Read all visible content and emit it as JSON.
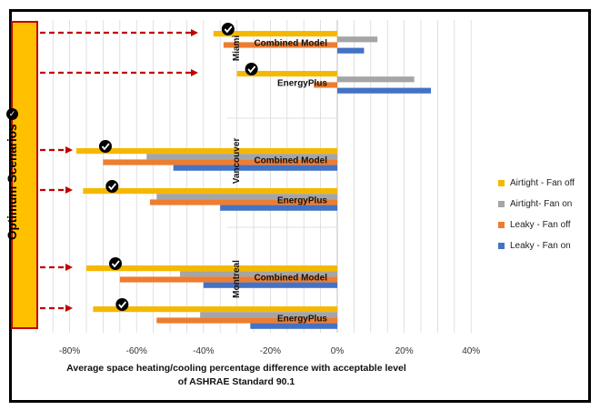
{
  "chart_data": {
    "type": "bar",
    "orientation": "horizontal",
    "xlabel": "Average space heating/cooling percentage difference with acceptable level of ASHRAE Standard 90.1",
    "xlim": [
      -90,
      40
    ],
    "xticks": [
      "-80%",
      "-60%",
      "-40%",
      "-20%",
      "0%",
      "20%",
      "40%"
    ],
    "xtick_values": [
      -80,
      -60,
      -40,
      -20,
      0,
      20,
      40
    ],
    "grid": true,
    "legend_position": "right",
    "series": [
      {
        "name": "Airtight - Fan off",
        "color": "#f5b800"
      },
      {
        "name": "Airtight- Fan on",
        "color": "#a5a5a5"
      },
      {
        "name": "Leaky - Fan off",
        "color": "#ed7d31"
      },
      {
        "name": "Leaky - Fan on",
        "color": "#4472c4"
      }
    ],
    "groups": [
      {
        "city": "Miami",
        "model": "Combined Model",
        "values": [
          -37,
          12,
          -34,
          8
        ],
        "optimum": true
      },
      {
        "city": "Miami",
        "model": "EnergyPlus",
        "values": [
          -30,
          23,
          -7,
          28
        ],
        "optimum": true
      },
      {
        "city": "Vancouver",
        "model": "Combined Model",
        "values": [
          -78,
          -57,
          -70,
          -49
        ],
        "optimum": true
      },
      {
        "city": "Vancouver",
        "model": "EnergyPlus",
        "values": [
          -76,
          -54,
          -56,
          -35
        ],
        "optimum": true
      },
      {
        "city": "Montreal",
        "model": "Combined Model",
        "values": [
          -75,
          -47,
          -65,
          -40
        ],
        "optimum": true
      },
      {
        "city": "Montreal",
        "model": "EnergyPlus",
        "values": [
          -73,
          -41,
          -54,
          -26
        ],
        "optimum": true
      }
    ],
    "cities": [
      "Miami",
      "Vancouver",
      "Montreal"
    ],
    "side_label": "Optimum Scenarios"
  }
}
